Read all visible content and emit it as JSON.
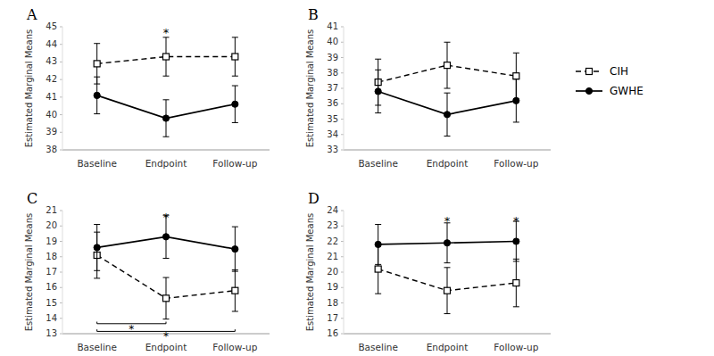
{
  "chart_data": [
    {
      "type": "line",
      "title": "A",
      "y_label": "Estimated Marginal Means",
      "categories": [
        "Baseline",
        "Endpoint",
        "Follow-up"
      ],
      "series": [
        {
          "name": "CIH",
          "color": "#000000",
          "line_style": "dashed",
          "marker": "square",
          "values": [
            42.9,
            43.3,
            43.3
          ],
          "errors": [
            1.15,
            1.1,
            1.1
          ]
        },
        {
          "name": "GWHE",
          "color": "#000000",
          "line_style": "solid",
          "marker": "circle",
          "values": [
            41.1,
            39.8,
            40.6
          ],
          "errors": [
            1.05,
            1.05,
            1.05
          ]
        }
      ],
      "ylim": [
        38,
        45
      ],
      "yticks": [
        38,
        39,
        40,
        41,
        42,
        43,
        44,
        45
      ],
      "annotations": [
        {
          "text": "*",
          "x": 1,
          "y": 44.8
        }
      ]
    },
    {
      "type": "line",
      "title": "B",
      "y_label": "Estimated Marginal Means",
      "categories": [
        "Baseline",
        "Endpoint",
        "Follow-up"
      ],
      "series": [
        {
          "name": "CIH",
          "color": "#000000",
          "line_style": "dashed",
          "marker": "square",
          "values": [
            37.4,
            38.5,
            37.8
          ],
          "errors": [
            1.5,
            1.5,
            1.5
          ]
        },
        {
          "name": "GWHE",
          "color": "#000000",
          "line_style": "solid",
          "marker": "circle",
          "values": [
            36.8,
            35.3,
            36.2
          ],
          "errors": [
            1.4,
            1.4,
            1.4
          ]
        }
      ],
      "ylim": [
        33,
        41
      ],
      "yticks": [
        33,
        34,
        35,
        36,
        37,
        38,
        39,
        40,
        41
      ],
      "legend": "right"
    },
    {
      "type": "line",
      "title": "C",
      "y_label": "Estimated Marginal Means",
      "categories": [
        "Baseline",
        "Endpoint",
        "Follow-up"
      ],
      "series": [
        {
          "name": "CIH",
          "color": "#000000",
          "line_style": "dashed",
          "marker": "square",
          "values": [
            18.1,
            15.3,
            15.8
          ],
          "errors": [
            1.5,
            1.35,
            1.35
          ]
        },
        {
          "name": "GWHE",
          "color": "#000000",
          "line_style": "solid",
          "marker": "circle",
          "values": [
            18.6,
            19.3,
            18.5
          ],
          "errors": [
            1.5,
            1.4,
            1.45
          ]
        }
      ],
      "ylim": [
        13,
        21
      ],
      "yticks": [
        13,
        14,
        15,
        16,
        17,
        18,
        19,
        20,
        21
      ],
      "annotations": [
        {
          "text": "*",
          "x": 1,
          "y": 20.7
        },
        {
          "text": "*",
          "x": 0.5,
          "y": 13.65,
          "x1": 0,
          "x2": 1
        },
        {
          "text": "*",
          "x": 1.0,
          "y": 13.15,
          "x1": 0,
          "x2": 2
        }
      ]
    },
    {
      "type": "line",
      "title": "D",
      "y_label": "Estimated Marginal Means",
      "categories": [
        "Baseline",
        "Endpoint",
        "Follow-up"
      ],
      "series": [
        {
          "name": "CIH",
          "color": "#000000",
          "line_style": "dashed",
          "marker": "square",
          "values": [
            20.2,
            18.8,
            19.3
          ],
          "errors": [
            1.6,
            1.5,
            1.55
          ]
        },
        {
          "name": "GWHE",
          "color": "#000000",
          "line_style": "solid",
          "marker": "circle",
          "values": [
            21.8,
            21.9,
            22.0
          ],
          "errors": [
            1.3,
            1.3,
            1.3
          ]
        }
      ],
      "ylim": [
        16,
        24
      ],
      "yticks": [
        16,
        17,
        18,
        19,
        20,
        21,
        22,
        23,
        24
      ],
      "annotations": [
        {
          "text": "*",
          "x": 1,
          "y": 23.5
        },
        {
          "text": "*",
          "x": 2,
          "y": 23.5
        }
      ]
    }
  ]
}
